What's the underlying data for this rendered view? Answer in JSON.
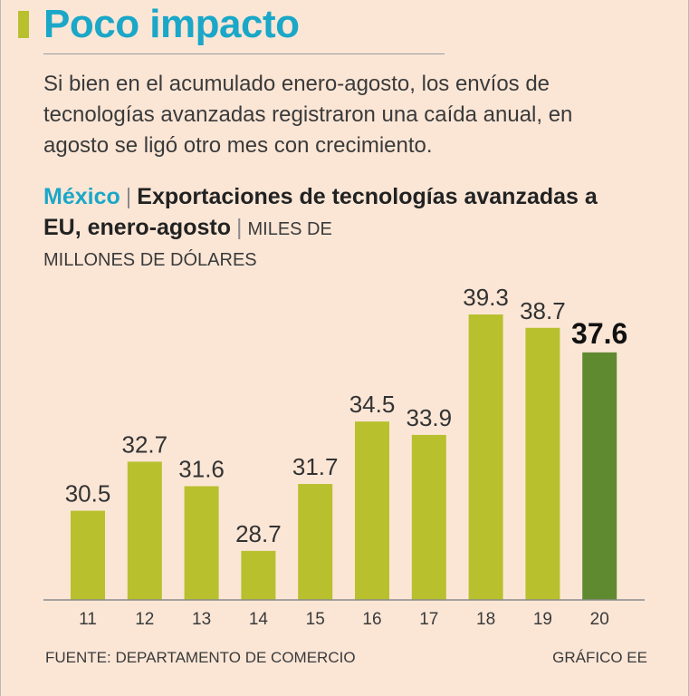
{
  "title": "Poco impacto",
  "description": "Si bien en el acumulado enero-agosto, los envíos de tecnologías avanzadas registraron una caída anual, en agosto se ligó otro mes con crecimiento.",
  "subtitle": {
    "country": "México",
    "separator": "|",
    "main": "Exportaciones de tecnologías avanzadas a EU, enero-agosto",
    "units_part1": "MILES DE",
    "units_part2": "MILLONES DE DÓLARES"
  },
  "colors": {
    "background": "#fbe6d6",
    "title": "#1aa7c8",
    "accent_bar": "#b8c02e",
    "bar": "#b8c02e",
    "bar_highlight": "#5f8a2f"
  },
  "chart_data": {
    "type": "bar",
    "categories": [
      "11",
      "12",
      "13",
      "14",
      "15",
      "16",
      "17",
      "18",
      "19",
      "20"
    ],
    "values": [
      30.5,
      32.7,
      31.6,
      28.7,
      31.7,
      34.5,
      33.9,
      39.3,
      38.7,
      37.6
    ],
    "data_labels": [
      "30.5",
      "32.7",
      "31.6",
      "28.7",
      "31.7",
      "34.5",
      "33.9",
      "39.3",
      "38.7",
      "37.6"
    ],
    "highlight_index": 9,
    "title": "Exportaciones de tecnologías avanzadas a EU, enero-agosto",
    "xlabel": "",
    "ylabel": "",
    "ylim": [
      26.5,
      39.3
    ],
    "grid": false,
    "legend": "none"
  },
  "footer": {
    "source": "FUENTE: DEPARTAMENTO DE COMERCIO",
    "credit": "GRÁFICO EE"
  }
}
